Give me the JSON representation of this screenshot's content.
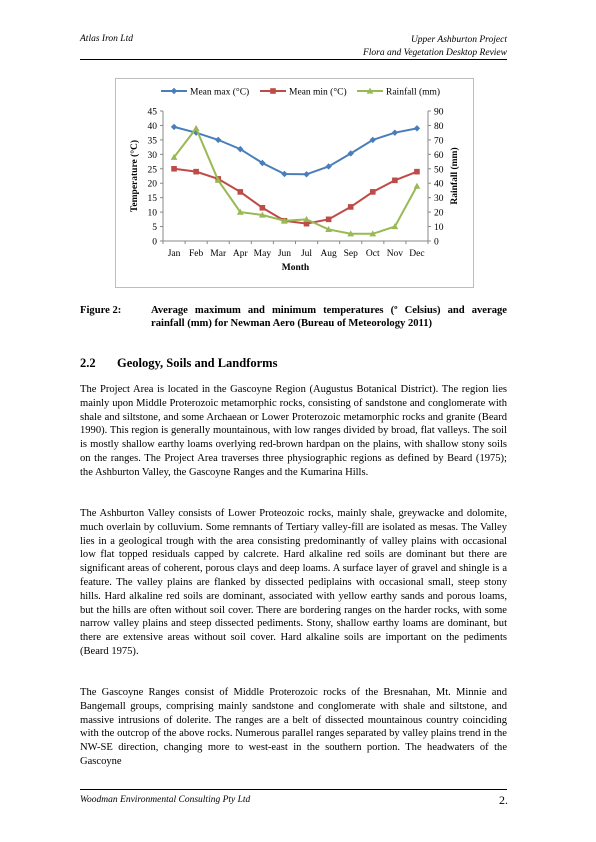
{
  "header": {
    "left": "Atlas Iron Ltd",
    "right_line1": "Upper Ashburton Project",
    "right_line2": "Flora and Vegetation Desktop Review"
  },
  "chart_data": {
    "type": "line",
    "categories": [
      "Jan",
      "Feb",
      "Mar",
      "Apr",
      "May",
      "Jun",
      "Jul",
      "Aug",
      "Sep",
      "Oct",
      "Nov",
      "Dec"
    ],
    "xlabel": "Month",
    "ylabel": "Temperature (°C)",
    "y2label": "Rainfall (mm)",
    "ylim": [
      0,
      45
    ],
    "y2lim": [
      0,
      90
    ],
    "yticks": [
      "0",
      "5",
      "10",
      "15",
      "20",
      "25",
      "30",
      "35",
      "40",
      "45"
    ],
    "y2ticks": [
      "0",
      "10",
      "20",
      "30",
      "40",
      "50",
      "60",
      "70",
      "80",
      "90"
    ],
    "legend_position": "top",
    "series": [
      {
        "name": "Mean max (°C)",
        "axis": "left",
        "color": "#4a7ebb",
        "marker": "diamond",
        "values": [
          39.5,
          37.5,
          35.0,
          31.8,
          27.0,
          23.2,
          23.1,
          25.8,
          30.3,
          35.0,
          37.5,
          39.0
        ]
      },
      {
        "name": "Mean min (°C)",
        "axis": "left",
        "color": "#be4b48",
        "marker": "square",
        "values": [
          25.0,
          24.0,
          21.5,
          17.0,
          11.5,
          7.0,
          6.0,
          7.5,
          11.8,
          17.0,
          21.0,
          24.0
        ]
      },
      {
        "name": "Rainfall (mm)",
        "axis": "right",
        "color": "#98b954",
        "marker": "triangle",
        "values": [
          58,
          78,
          42,
          20,
          18,
          14,
          15,
          8,
          5,
          5,
          10,
          38
        ]
      }
    ]
  },
  "figure": {
    "label": "Figure 2:",
    "caption": "Average maximum and minimum temperatures (º Celsius) and average rainfall (mm) for Newman Aero (Bureau of Meteorology 2011)"
  },
  "section": {
    "number": "2.2",
    "title": "Geology, Soils and Landforms"
  },
  "paragraphs": [
    "The Project Area is located in the Gascoyne Region (Augustus Botanical District).  The region lies mainly upon Middle Proterozoic metamorphic rocks, consisting of sandstone and conglomerate with shale and siltstone, and some Archaean or Lower Proterozoic metamorphic rocks and granite (Beard 1990).  This region is generally mountainous, with low ranges divided by broad, flat valleys.  The soil is mostly shallow earthy loams overlying red-brown hardpan on the plains, with shallow stony soils on the ranges.  The Project Area traverses three physiographic regions as defined by Beard (1975); the Ashburton Valley, the Gascoyne Ranges and the Kumarina Hills.",
    "The Ashburton Valley consists of Lower Proteozoic rocks, mainly shale, greywacke and dolomite, much overlain by colluvium.   Some remnants of Tertiary valley-fill are isolated as mesas.  The Valley lies in a geological trough with the area consisting predominantly of valley plains with occasional low flat topped residuals capped by calcrete.  Hard alkaline red soils are dominant but there are significant areas of coherent, porous clays and deep loams.  A surface layer of gravel and shingle is a feature.  The valley plains are flanked by dissected pediplains with occasional small, steep stony hills.  Hard alkaline red soils are dominant, associated with yellow earthy sands and porous loams, but the hills are often without soil cover.  There are bordering ranges on the harder rocks, with some narrow valley plains and steep dissected pediments.  Stony, shallow earthy loams are dominant, but there are extensive areas without soil cover. Hard alkaline soils are important on the pediments (Beard 1975).",
    "The Gascoyne Ranges consist of Middle Proterozoic rocks of the Bresnahan, Mt. Minnie and Bangemall groups, comprising mainly sandstone and conglomerate with shale and siltstone, and massive intrusions of dolerite.   The ranges are a belt of dissected mountainous country coinciding with the outcrop of the above rocks.  Numerous parallel ranges separated by valley plains trend in the NW-SE direction, changing more to west-east in the southern portion.  The headwaters of the Gascoyne"
  ],
  "footer": {
    "left": "Woodman Environmental Consulting Pty Ltd",
    "page": "2."
  }
}
